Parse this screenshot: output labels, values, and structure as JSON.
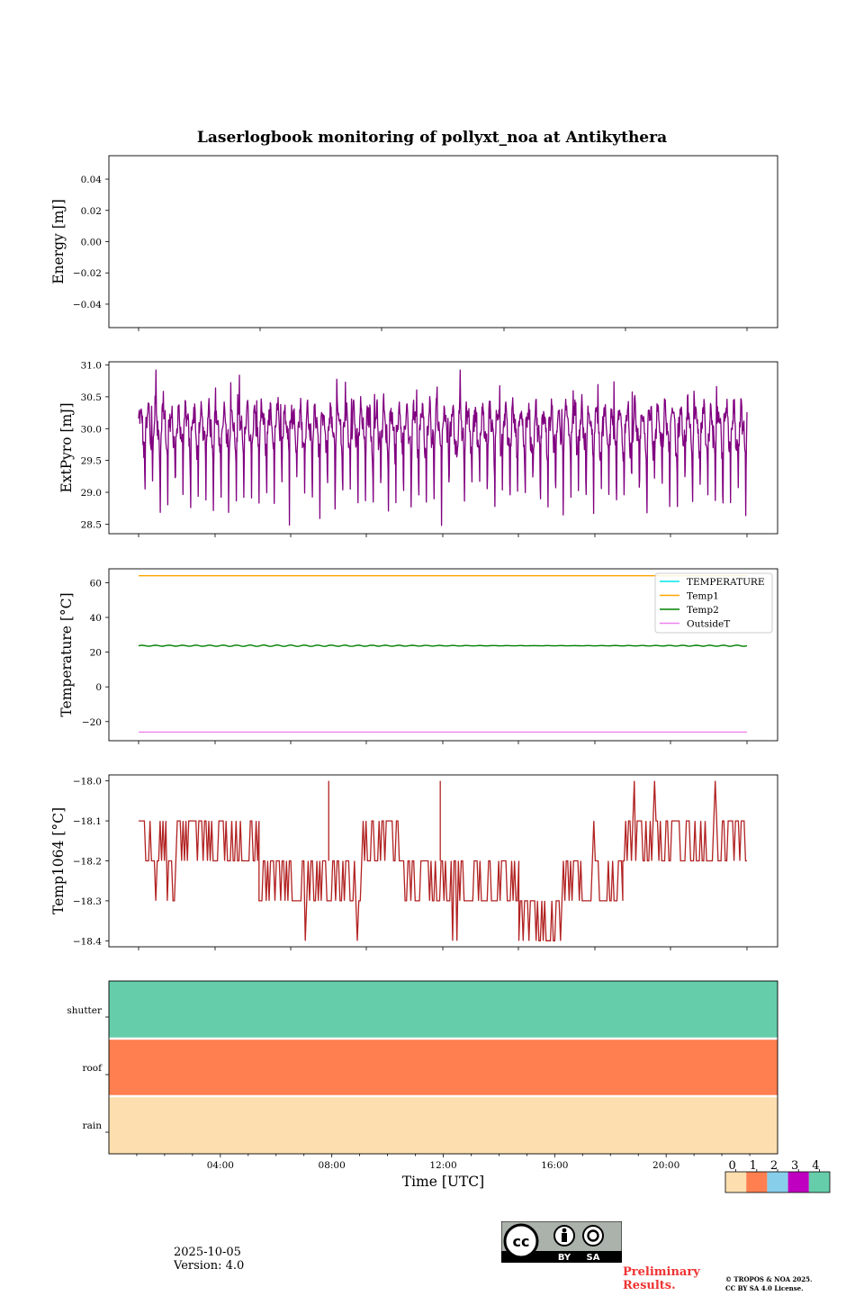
{
  "title": "Laserlogbook monitoring of pollyxt_noa at Antikythera",
  "footer": {
    "date": "2025-10-05",
    "version": "Version: 4.0",
    "preliminary_line1": "Preliminary",
    "preliminary_line2": "Results.",
    "copyright_line1": "© TROPOS & NOA 2025.",
    "copyright_line2": "CC BY SA 4.0 License.",
    "cc_labels": [
      "BY",
      "SA"
    ]
  },
  "chart_data": [
    {
      "id": "energy",
      "type": "line",
      "ylabel": "Energy [mJ]",
      "ylim": [
        -0.055,
        0.055
      ],
      "yticks": [
        -0.04,
        -0.02,
        0.0,
        0.02,
        0.04
      ],
      "ytick_labels": [
        "−0.04",
        "−0.02",
        "0.00",
        "0.02",
        "0.04"
      ],
      "xlim": [
        0,
        24
      ],
      "series": []
    },
    {
      "id": "extpyro",
      "type": "line",
      "ylabel": "ExtPyro [mJ]",
      "ylim": [
        28.35,
        31.05
      ],
      "yticks": [
        28.5,
        29.0,
        29.5,
        30.0,
        30.5,
        31.0
      ],
      "ytick_labels": [
        "28.5",
        "29.0",
        "29.5",
        "30.0",
        "30.5",
        "31.0"
      ],
      "xlim": [
        0,
        24
      ],
      "series": [
        {
          "name": "ExtPyro",
          "color": "#800080",
          "pattern": "oscillating",
          "x_range": [
            1.2,
            25.2
          ],
          "mean": 30.0,
          "max": 30.92,
          "min": 28.48,
          "cycles": 80
        }
      ]
    },
    {
      "id": "temperature",
      "type": "line",
      "ylabel": "Temperature [°C]",
      "ylim": [
        -31,
        68
      ],
      "yticks": [
        -20,
        0,
        20,
        40,
        60
      ],
      "ytick_labels": [
        "−20",
        "0",
        "20",
        "40",
        "60"
      ],
      "xlim": [
        0,
        24
      ],
      "legend": "top-right",
      "series": [
        {
          "name": "TEMPERATURE",
          "color": "#00e5e5",
          "values": [],
          "x": []
        },
        {
          "name": "Temp1",
          "color": "#ffa500",
          "x": [
            1.2,
            25.2
          ],
          "values": [
            64.0,
            64.0
          ]
        },
        {
          "name": "Temp2",
          "color": "#008000",
          "x": [
            1.2,
            25.2
          ],
          "values": [
            23.7,
            23.7
          ],
          "pattern": "wobble",
          "amplitude": 0.4
        },
        {
          "name": "OutsideT",
          "color": "#ee82ee",
          "x": [
            1.2,
            25.2
          ],
          "values": [
            -26.0,
            -26.0
          ]
        }
      ]
    },
    {
      "id": "temp1064",
      "type": "line",
      "ylabel": "Temp1064 [°C]",
      "ylim": [
        -18.415,
        -17.985
      ],
      "yticks": [
        -18.4,
        -18.3,
        -18.2,
        -18.1,
        -18.0
      ],
      "ytick_labels": [
        "−18.4",
        "−18.3",
        "−18.2",
        "−18.1",
        "−18.0"
      ],
      "xlim": [
        0,
        24
      ],
      "series": [
        {
          "name": "Temp1064",
          "color": "#b22222",
          "pattern": "step-toggle",
          "segments": [
            {
              "from": 1.2,
              "to": 5.95,
              "levels": [
                -18.1,
                -18.2
              ],
              "dips": [
                -18.3
              ]
            },
            {
              "from": 5.95,
              "to": 10.0,
              "levels": [
                -18.2,
                -18.3
              ],
              "dips": [
                -18.4
              ]
            },
            {
              "from": 10.0,
              "to": 11.6,
              "levels": [
                -18.1,
                -18.2
              ],
              "dips": [
                -18.3
              ]
            },
            {
              "from": 11.6,
              "to": 16.2,
              "levels": [
                -18.2,
                -18.3
              ],
              "dips": [
                -18.4
              ]
            },
            {
              "from": 16.2,
              "to": 17.9,
              "levels": [
                -18.3,
                -18.4
              ],
              "dips": [
                -18.2
              ]
            },
            {
              "from": 17.9,
              "to": 20.3,
              "levels": [
                -18.2,
                -18.3
              ],
              "dips": [
                -18.1
              ]
            },
            {
              "from": 20.3,
              "to": 25.2,
              "levels": [
                -18.1,
                -18.2
              ],
              "dips": [
                -18.0
              ]
            }
          ],
          "spikes": [
            {
              "x": 8.7,
              "value": -18.0
            },
            {
              "x": 13.1,
              "value": -18.0
            }
          ]
        }
      ]
    },
    {
      "id": "status",
      "type": "heatmap",
      "rows": [
        "rain",
        "roof",
        "shutter"
      ],
      "row_values": [
        0,
        1,
        4
      ],
      "colorbar": {
        "ticks": [
          "0",
          "1",
          "2",
          "3",
          "4"
        ],
        "colors": [
          "#fddfaf",
          "#ff7f50",
          "#87ceeb",
          "#c000c0",
          "#66cdaa"
        ]
      },
      "xlabel": "Time [UTC]",
      "xlim": [
        0,
        24
      ],
      "xticks": [
        4,
        8,
        12,
        16,
        20
      ],
      "xtick_labels": [
        "04:00",
        "08:00",
        "12:00",
        "16:00",
        "20:00"
      ]
    }
  ]
}
